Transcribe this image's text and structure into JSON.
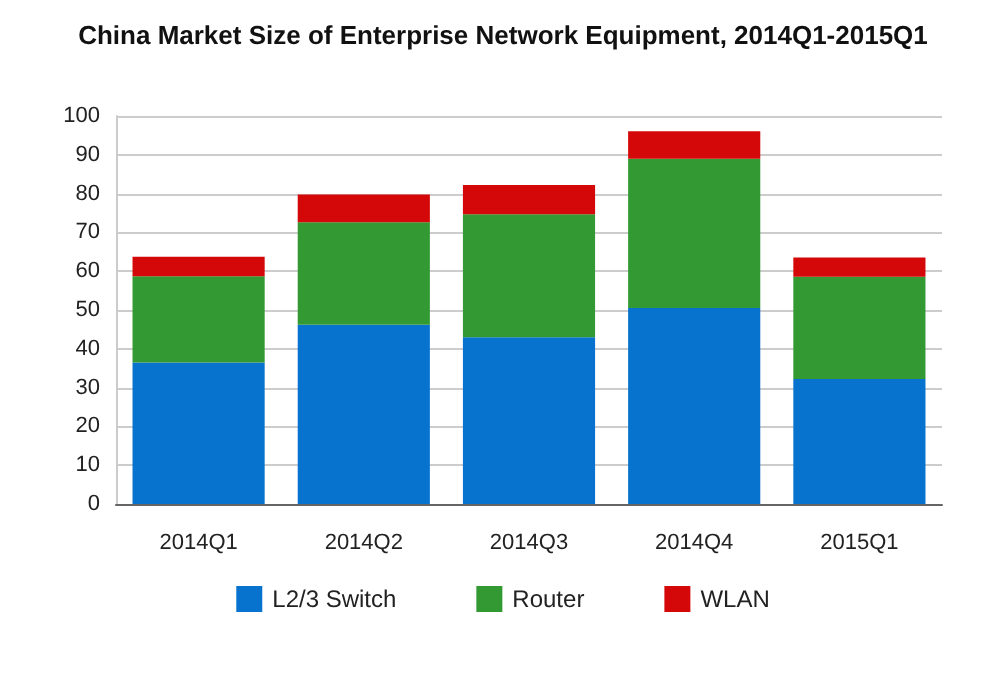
{
  "chart_data": {
    "type": "bar",
    "title": "China Market Size of Enterprise Network Equipment, 2014Q1-2015Q1",
    "categories": [
      "2014Q1",
      "2014Q2",
      "2014Q3",
      "2014Q4",
      "2015Q1"
    ],
    "series": [
      {
        "name": "L2/3 Switch",
        "color": "#0873cf",
        "values": [
          36.5,
          46.2,
          43.0,
          50.5,
          32.2
        ]
      },
      {
        "name": "Router",
        "color": "#339933",
        "values": [
          22.2,
          26.4,
          31.7,
          38.5,
          26.4
        ]
      },
      {
        "name": "WLAN",
        "color": "#d40808",
        "values": [
          5.0,
          7.2,
          7.5,
          7.1,
          4.9
        ]
      }
    ],
    "stacked": true,
    "ylim": [
      0,
      100
    ],
    "yticks": [
      0,
      10,
      20,
      30,
      40,
      50,
      60,
      70,
      80,
      90,
      100
    ],
    "grid": "y",
    "legend": "bottom"
  }
}
